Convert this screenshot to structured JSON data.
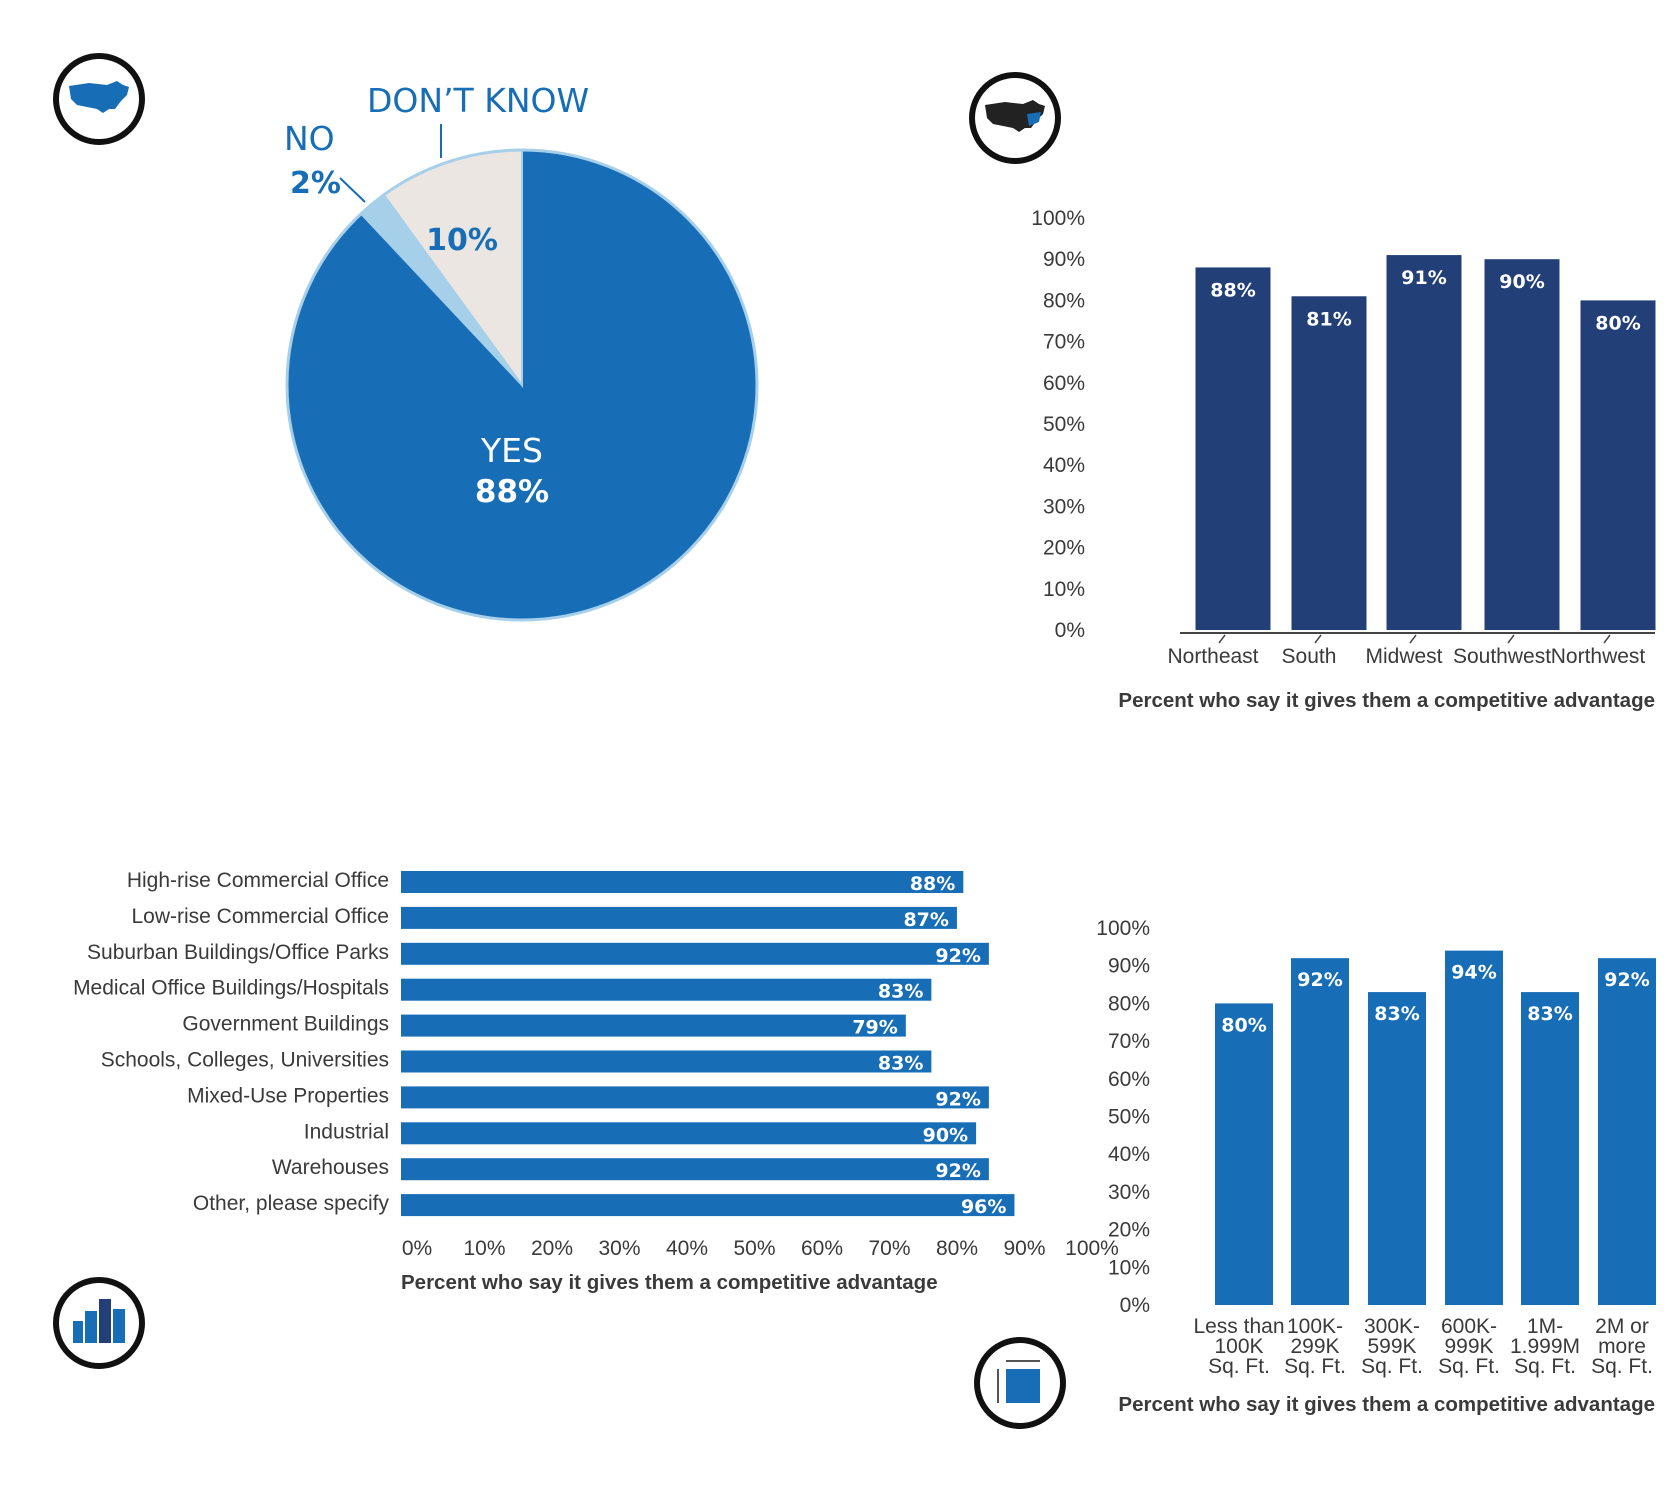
{
  "colors": {
    "pie_yes": "#176db6",
    "pie_no": "#a6cfea",
    "pie_dont_know": "#ece6e2",
    "pie_outline": "#a6cfea",
    "region_bar": "#223f77",
    "blue_bar": "#176db6",
    "icon_ring": "#111111",
    "axis_line": "#444444"
  },
  "icons": {
    "pie": "us-map-icon",
    "region": "us-map-dark-icon",
    "property": "buildings-icon",
    "size": "floor-area-icon"
  },
  "chart_data": [
    {
      "id": "pie",
      "type": "pie",
      "title": "",
      "slices": [
        {
          "label": "YES",
          "value": 88,
          "display": "88%"
        },
        {
          "label": "NO",
          "value": 2,
          "display": "2%"
        },
        {
          "label": "DON’T KNOW",
          "value": 10,
          "display": "10%"
        }
      ]
    },
    {
      "id": "region",
      "type": "bar",
      "categories": [
        "Northeast",
        "South",
        "Midwest",
        "Southwest",
        "Northwest"
      ],
      "values": [
        88,
        81,
        91,
        90,
        80
      ],
      "value_labels": [
        "88%",
        "81%",
        "91%",
        "90%",
        "80%"
      ],
      "yticks": [
        "0%",
        "10%",
        "20%",
        "30%",
        "40%",
        "50%",
        "60%",
        "70%",
        "80%",
        "90%",
        "100%"
      ],
      "ylim": [
        0,
        100
      ],
      "xlabel": "Percent who say it gives them a competitive advantage",
      "ylabel": ""
    },
    {
      "id": "property",
      "type": "bar",
      "orientation": "horizontal",
      "categories": [
        "High-rise Commercial Office",
        "Low-rise Commercial Office",
        "Suburban Buildings/Office Parks",
        "Medical Office Buildings/Hospitals",
        "Government Buildings",
        "Schools, Colleges, Universities",
        "Mixed-Use Properties",
        "Industrial",
        "Warehouses",
        "Other, please specify"
      ],
      "values": [
        88,
        87,
        92,
        83,
        79,
        83,
        92,
        90,
        92,
        96
      ],
      "value_labels": [
        "88%",
        "87%",
        "92%",
        "83%",
        "79%",
        "83%",
        "92%",
        "90%",
        "92%",
        "96%"
      ],
      "xticks": [
        "0%",
        "10%",
        "20%",
        "30%",
        "40%",
        "50%",
        "60%",
        "70%",
        "80%",
        "90%",
        "100%"
      ],
      "xlim": [
        0,
        100
      ],
      "xlabel": "Percent who say it gives them a competitive advantage"
    },
    {
      "id": "size",
      "type": "bar",
      "categories": [
        [
          "Less than",
          "100K",
          "Sq. Ft."
        ],
        [
          "100K-",
          "299K",
          "Sq. Ft."
        ],
        [
          "300K-",
          "599K",
          "Sq. Ft."
        ],
        [
          "600K-",
          "999K",
          "Sq. Ft."
        ],
        [
          "1M-",
          "1.999M",
          "Sq. Ft."
        ],
        [
          "2M or",
          "more",
          "Sq. Ft."
        ]
      ],
      "values": [
        80,
        92,
        83,
        94,
        83,
        92
      ],
      "value_labels": [
        "80%",
        "92%",
        "83%",
        "94%",
        "83%",
        "92%"
      ],
      "yticks": [
        "0%",
        "10%",
        "20%",
        "30%",
        "40%",
        "50%",
        "60%",
        "70%",
        "80%",
        "90%",
        "100%"
      ],
      "ylim": [
        0,
        100
      ],
      "xlabel": "Percent who say it gives them a competitive advantage"
    }
  ]
}
